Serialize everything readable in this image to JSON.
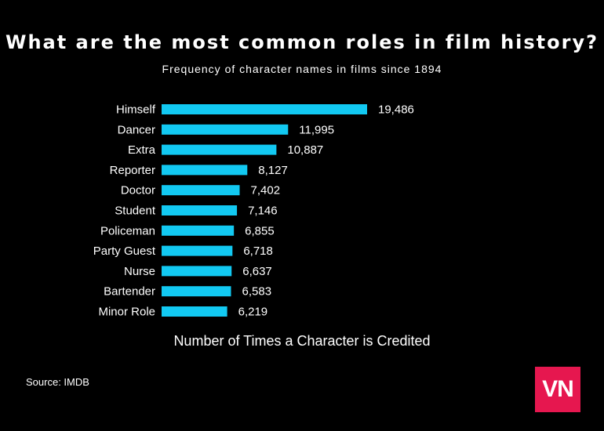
{
  "colors": {
    "background": "#000000",
    "bar": "#12c9f2",
    "text": "#ffffff",
    "logo_bg": "#e6174f"
  },
  "chart_data": {
    "type": "bar",
    "orientation": "horizontal",
    "title": "What are the most common roles in film history?",
    "subtitle": "Frequency of character names in films since 1894",
    "xlabel": "Number of Times a Character is Credited",
    "categories": [
      "Himself",
      "Dancer",
      "Extra",
      "Reporter",
      "Doctor",
      "Student",
      "Policeman",
      "Party Guest",
      "Nurse",
      "Bartender",
      "Minor Role"
    ],
    "values": [
      19486,
      11995,
      10887,
      8127,
      7402,
      7146,
      6855,
      6718,
      6637,
      6583,
      6219
    ],
    "value_labels": [
      "19,486",
      "11,995",
      "10,887",
      "8,127",
      "7,402",
      "7,146",
      "6,855",
      "6,718",
      "6,637",
      "6,583",
      "6,219"
    ],
    "grid": false,
    "legend": "none"
  },
  "footer": {
    "source": "Source: IMDB"
  },
  "logo": {
    "text": "VN"
  }
}
